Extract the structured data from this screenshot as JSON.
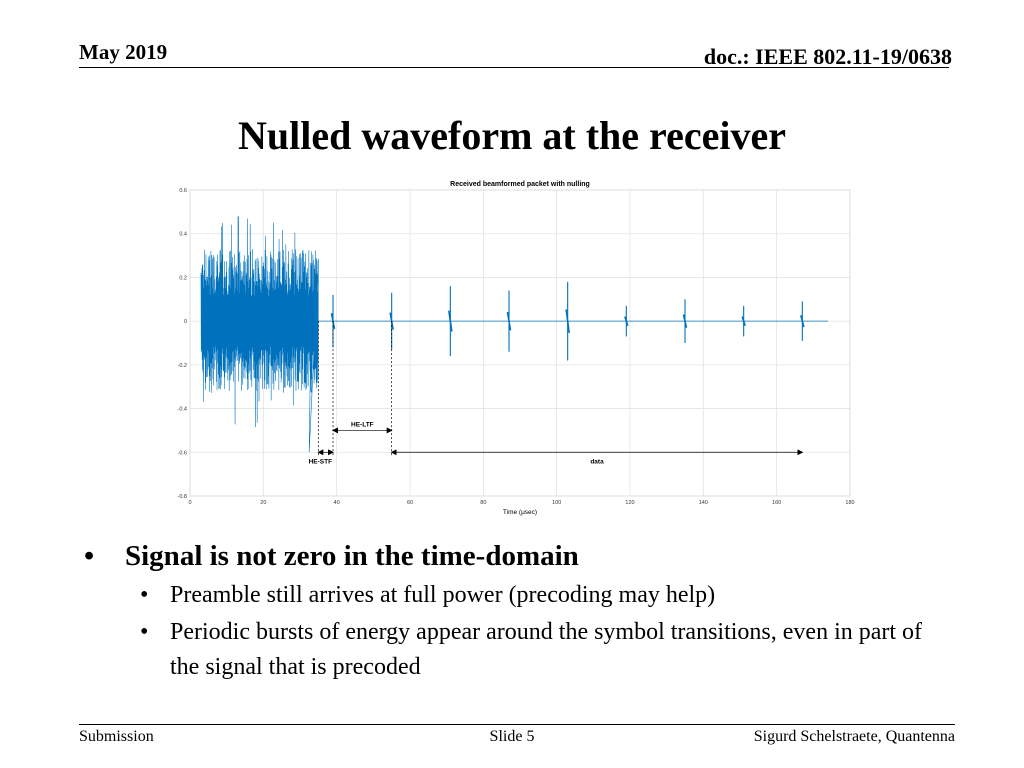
{
  "header": {
    "date": "May  2019",
    "doc": "doc.: IEEE 802.11-19/0638"
  },
  "slide": {
    "title": "Nulled waveform at the receiver"
  },
  "bullets": {
    "main": "Signal is not zero in the time-domain",
    "sub": [
      "Preamble still arrives at full power (precoding may help)",
      "Periodic bursts of energy appear around the symbol transitions, even in part of the signal that is precoded"
    ]
  },
  "footer": {
    "left": "Submission",
    "center": "Slide 5",
    "right": "Sigurd Schelstraete, Quantenna"
  },
  "chart_data": {
    "type": "line",
    "title": "Received beamformed packet with nulling",
    "xlabel": "Time (μsec)",
    "ylabel": "",
    "xlim": [
      0,
      180
    ],
    "ylim": [
      -0.8,
      0.6
    ],
    "xticks": [
      0,
      20,
      40,
      60,
      80,
      100,
      120,
      140,
      160,
      180
    ],
    "yticks": [
      0.6,
      0.4,
      0.2,
      0,
      -0.2,
      -0.4,
      -0.6,
      -0.8
    ],
    "ytick_labels": [
      "0.6",
      "0.4",
      "0.2",
      "0",
      "-0.2",
      "-0.4",
      "-0.6",
      "-0.8"
    ],
    "grid": true,
    "series_color": "#0072bd",
    "preamble": {
      "x_start": 3,
      "x_end": 35,
      "typical_peak": 0.33,
      "max": 0.5,
      "min": -0.6
    },
    "spikes": [
      {
        "x": 39,
        "amplitude": 0.12
      },
      {
        "x": 55,
        "amplitude": 0.13
      },
      {
        "x": 71,
        "amplitude": 0.16
      },
      {
        "x": 87,
        "amplitude": 0.14
      },
      {
        "x": 103,
        "amplitude": 0.18
      },
      {
        "x": 119,
        "amplitude": 0.07
      },
      {
        "x": 135,
        "amplitude": 0.1
      },
      {
        "x": 151,
        "amplitude": 0.07
      },
      {
        "x": 167,
        "amplitude": 0.09
      }
    ],
    "annotations": [
      {
        "label": "HE-STF",
        "x1": 35,
        "x2": 39,
        "y": -0.6
      },
      {
        "label": "HE-LTF",
        "x1": 39,
        "x2": 55,
        "y": -0.5
      },
      {
        "label": "data",
        "x1": 55,
        "x2": 167,
        "y": -0.6
      }
    ]
  }
}
